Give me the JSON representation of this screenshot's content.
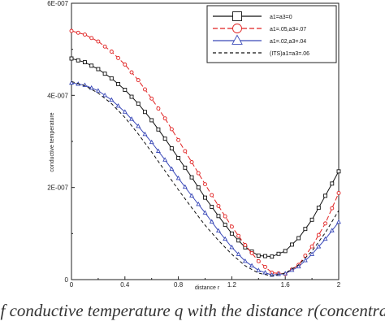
{
  "chart_data": {
    "type": "line",
    "xlabel": "distance r",
    "ylabel": "conductive temperature",
    "xlim": [
      0,
      2
    ],
    "ylim": [
      0,
      6e-07
    ],
    "grid": false,
    "legend_position": "top-right",
    "x_ticks": [
      "0",
      "0.4",
      "0.8",
      "1.2",
      "1.6",
      "2"
    ],
    "y_ticks": [
      "0",
      "2E-007",
      "4E-007",
      "6E-007"
    ],
    "series": [
      {
        "name": "a1=a3=0",
        "color": "#111111",
        "dash": "solid",
        "marker": "square",
        "x": [
          0,
          0.1,
          0.2,
          0.3,
          0.4,
          0.5,
          0.6,
          0.7,
          0.8,
          0.9,
          1.0,
          1.1,
          1.2,
          1.3,
          1.4,
          1.5,
          1.6,
          1.7,
          1.8,
          1.9,
          2.0
        ],
        "y": [
          4.8e-07,
          4.72e-07,
          4.57e-07,
          4.37e-07,
          4.12e-07,
          3.82e-07,
          3.46e-07,
          3.06e-07,
          2.64e-07,
          2.22e-07,
          1.78e-07,
          1.38e-07,
          1e-07,
          7e-08,
          5.2e-08,
          5e-08,
          6.2e-08,
          9e-08,
          1.3e-07,
          1.82e-07,
          2.35e-07
        ]
      },
      {
        "name": "a1=.05,a3=.07",
        "color": "#e02020",
        "dash": "6,3",
        "marker": "circle",
        "x": [
          0,
          0.1,
          0.2,
          0.3,
          0.4,
          0.5,
          0.6,
          0.7,
          0.8,
          0.9,
          1.0,
          1.1,
          1.2,
          1.3,
          1.4,
          1.5,
          1.6,
          1.7,
          1.8,
          1.9,
          2.0
        ],
        "y": [
          5.4e-07,
          5.32e-07,
          5.17e-07,
          4.95e-07,
          4.67e-07,
          4.33e-07,
          3.93e-07,
          3.5e-07,
          3.03e-07,
          2.55e-07,
          2.07e-07,
          1.6e-07,
          1.15e-07,
          7.5e-08,
          4e-08,
          1.5e-08,
          1.2e-08,
          3.2e-08,
          7.2e-08,
          1.22e-07,
          1.88e-07
        ]
      },
      {
        "name": "a1=.02,a3=.04",
        "color": "#3a49b8",
        "dash": "solid",
        "marker": "triangle",
        "x": [
          0,
          0.1,
          0.2,
          0.3,
          0.4,
          0.5,
          0.6,
          0.7,
          0.8,
          0.9,
          1.0,
          1.1,
          1.2,
          1.3,
          1.4,
          1.5,
          1.6,
          1.7,
          1.8,
          1.9,
          2.0
        ],
        "y": [
          4.27e-07,
          4.22e-07,
          4.1e-07,
          3.9e-07,
          3.64e-07,
          3.33e-07,
          2.98e-07,
          2.6e-07,
          2.2e-07,
          1.82e-07,
          1.45e-07,
          1.06e-07,
          7e-08,
          4e-08,
          2e-08,
          1e-08,
          1.3e-08,
          2.8e-08,
          5.5e-08,
          8.8e-08,
          1.25e-07
        ]
      },
      {
        "name": "(ITS)a1=a3=.06",
        "color": "#111111",
        "dash": "4,3",
        "marker": "none",
        "x": [
          0,
          0.1,
          0.2,
          0.3,
          0.4,
          0.5,
          0.6,
          0.7,
          0.8,
          0.9,
          1.0,
          1.1,
          1.2,
          1.3,
          1.4,
          1.5,
          1.6,
          1.7,
          1.8,
          1.9,
          2.0
        ],
        "y": [
          4.3e-07,
          4.21e-07,
          4.05e-07,
          3.82e-07,
          3.52e-07,
          3.16e-07,
          2.77e-07,
          2.36e-07,
          1.95e-07,
          1.56e-07,
          1.18e-07,
          8.5e-08,
          5.5e-08,
          3e-08,
          1.4e-08,
          8e-09,
          1.4e-08,
          3.2e-08,
          6.2e-08,
          1.02e-07,
          1.5e-07
        ]
      }
    ]
  },
  "caption": "of conductive temperature q with the distance r(concentra"
}
